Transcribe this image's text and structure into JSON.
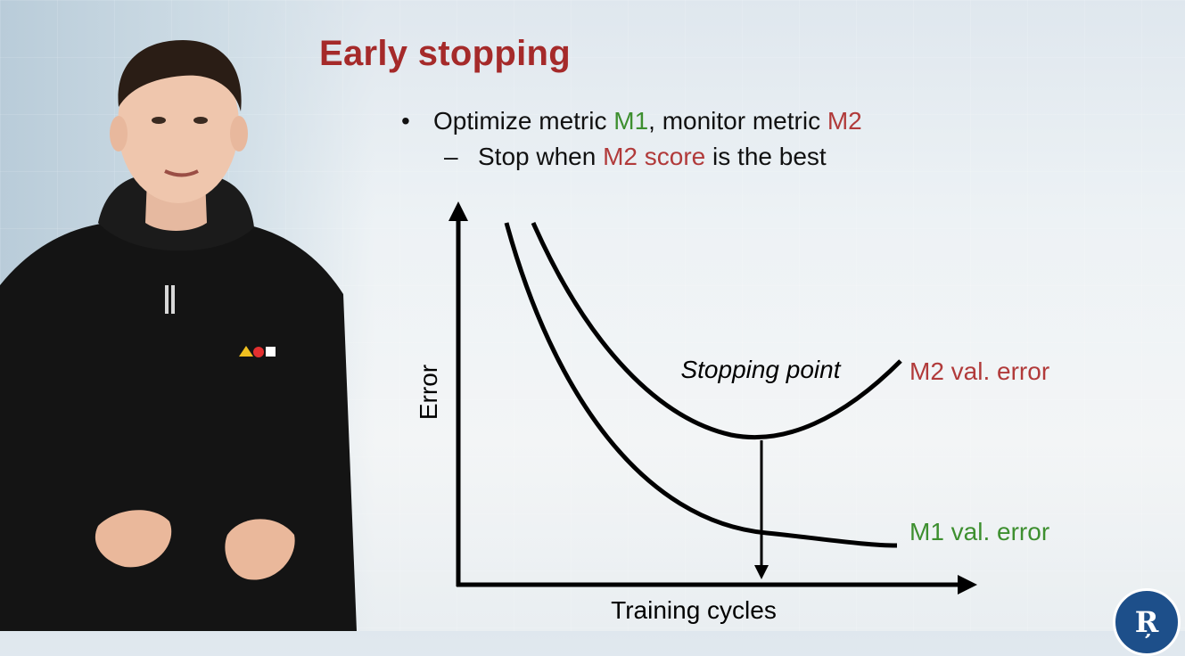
{
  "slide": {
    "title": "Early stopping",
    "bullet1": {
      "prefix": "Optimize metric ",
      "m1": "M1",
      "mid": ", monitor metric ",
      "m2": "M2"
    },
    "bullet2": {
      "prefix": "Stop when ",
      "highlight": "M2 score",
      "suffix": " is the best"
    }
  },
  "diagram": {
    "y_axis_label": "Error",
    "x_axis_label": "Training cycles",
    "stopping_point_label": "Stopping point",
    "m2_curve_label": "M2 val. error",
    "m1_curve_label": "M1 val. error"
  },
  "colors": {
    "title": "#a52a2a",
    "m1": "#3d8f2f",
    "m2": "#b13a3a",
    "axis": "#000000"
  },
  "icons": [
    "presenter-figure",
    "university-logo-icon"
  ],
  "logo": {
    "glyph": "Ŗ"
  }
}
